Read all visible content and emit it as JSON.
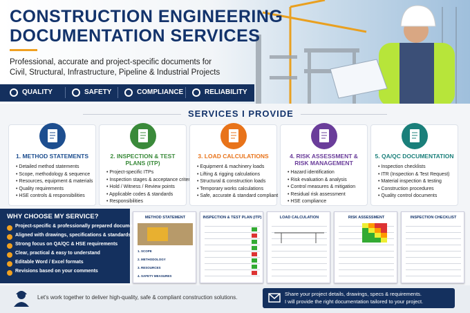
{
  "header": {
    "title_lines": [
      "CONSTRUCTION ENGINEERING",
      "DOCUMENTATION SERVICES"
    ],
    "subtitle_lines": [
      "Professional, accurate and project-specific documents for",
      "Civil, Structural, Infrastructure, Pipeline & Industrial Projects"
    ],
    "badges": [
      "QUALITY",
      "SAFETY",
      "COMPLIANCE",
      "RELIABILITY"
    ]
  },
  "services": {
    "title": "SERVICES I PROVIDE",
    "items": [
      {
        "title": "1. METHOD STATEMENTS",
        "bullets": [
          "Detailed method statements",
          "Scope, methodology & sequence",
          "Resources, equipment & materials",
          "Quality requirements",
          "HSE controls & responsibilities"
        ]
      },
      {
        "title": "2. INSPECTION & TEST PLANS (ITP)",
        "bullets": [
          "Project-specific ITPs",
          "Inspection stages & acceptance criteria",
          "Hold / Witness / Review points",
          "Applicable codes & standards",
          "Responsibilities"
        ]
      },
      {
        "title": "3. LOAD CALCULATIONS",
        "bullets": [
          "Equipment & machinery loads",
          "Lifting & rigging calculations",
          "Structural & construction loads",
          "Temporary works calculations",
          "Safe, accurate & standard compliant"
        ]
      },
      {
        "title": "4. RISK ASSESSMENT & RISK MANAGEMENT",
        "bullets": [
          "Hazard identification",
          "Risk evaluation & analysis",
          "Control measures & mitigation",
          "Residual risk assessment",
          "HSE compliance"
        ]
      },
      {
        "title": "5. QA/QC DOCUMENTATION",
        "bullets": [
          "Inspection checklists",
          "ITR (Inspection & Test Request)",
          "Material inspection & testing",
          "Construction procedures",
          "Quality control documents"
        ]
      }
    ]
  },
  "why": {
    "title": "WHY CHOOSE MY SERVICE?",
    "items": [
      "Project-specific & professionally prepared documents",
      "Aligned with drawings, specifications & standards",
      "Strong focus on QA/QC & HSE requirements",
      "Clear, practical & easy to understand",
      "Editable Word / Excel formats",
      "Revisions based on your comments"
    ]
  },
  "documents": [
    {
      "title": "METHOD STATEMENT",
      "sections": [
        "1. SCOPE",
        "2. METHODOLOGY",
        "3. RESOURCES",
        "4. SAFETY MEASURES"
      ]
    },
    {
      "title": "INSPECTION & TEST PLAN (ITP)"
    },
    {
      "title": "LOAD CALCULATION"
    },
    {
      "title": "RISK ASSESSMENT"
    },
    {
      "title": "INSPECTION CHECKLIST"
    }
  ],
  "footer": {
    "message": "Let's work together to deliver high-quality, safe & compliant construction solutions.",
    "cta_lines": [
      "Share your project details, drawings, specs & requirements.",
      "I will provide the right documentation tailored to your project."
    ]
  }
}
